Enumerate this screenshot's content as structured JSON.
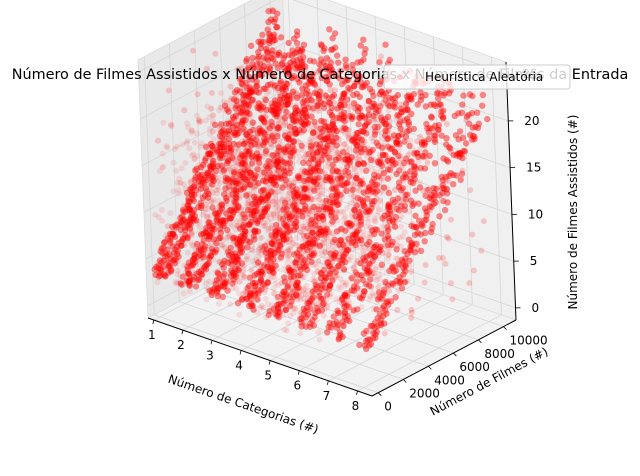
{
  "chart_data": {
    "type": "scatter",
    "projection": "3d",
    "title": "Número de Filmes Assistidos x Número de Categorias x Número de Filmes da Entrada",
    "xlabel": "Número de Categorias (#)",
    "ylabel": "Número de Filmes (#)",
    "zlabel": "Número de Filmes Assistidos (#)",
    "x_ticks": [
      "1",
      "2",
      "3",
      "4",
      "5",
      "6",
      "7",
      "8"
    ],
    "y_ticks": [
      "0",
      "2000",
      "4000",
      "6000",
      "8000",
      "10000"
    ],
    "z_ticks": [
      "0",
      "5",
      "10",
      "15",
      "20",
      "25"
    ],
    "xlim": [
      0.8,
      8.5
    ],
    "ylim": [
      -500,
      11000
    ],
    "zlim": [
      -1.3,
      26.3
    ],
    "grid": true,
    "legend_position": "upper right",
    "series": [
      {
        "name": "Heurística Aleatória",
        "color": "#ff0000",
        "marker": "circle",
        "alpha": 0.1
      }
    ],
    "streak_categories": [
      1,
      2,
      3,
      4,
      5,
      6,
      7,
      8
    ],
    "streak_y_range": [
      0,
      10000
    ],
    "streak_z_range": [
      3,
      25
    ]
  }
}
